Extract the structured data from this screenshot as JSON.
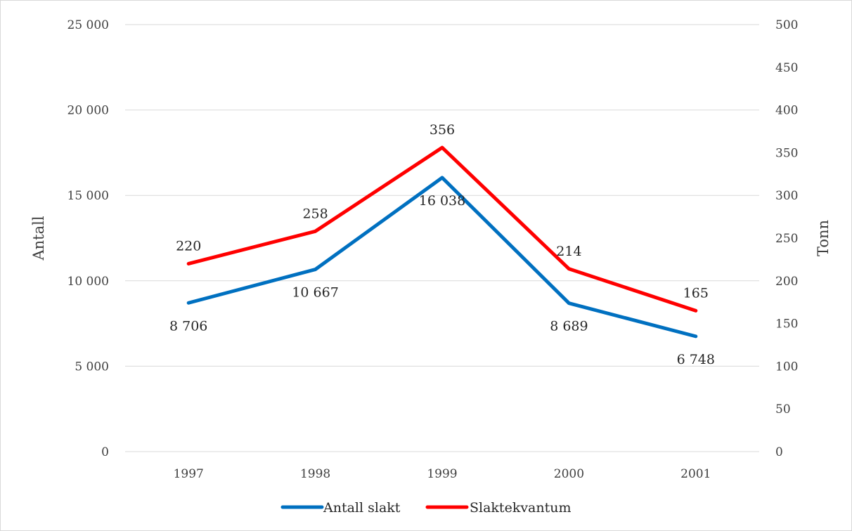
{
  "chart_data": {
    "type": "line",
    "categories": [
      "1997",
      "1998",
      "1999",
      "2000",
      "2001"
    ],
    "series": [
      {
        "name": "Antall slakt",
        "axis": "left",
        "color": "#0070c0",
        "values": [
          8706,
          10667,
          16038,
          8689,
          6748
        ],
        "labels": [
          "8 706",
          "10 667",
          "16 038",
          "8 689",
          "6 748"
        ]
      },
      {
        "name": "Slaktekvantum",
        "axis": "right",
        "color": "#ff0000",
        "values": [
          220,
          258,
          356,
          214,
          165
        ],
        "labels": [
          "220",
          "258",
          "356",
          "214",
          "165"
        ]
      }
    ],
    "y_left": {
      "label": "Antall",
      "range": [
        0,
        25000
      ],
      "ticks": [
        "0",
        "5 000",
        "10 000",
        "15 000",
        "20 000",
        "25 000"
      ]
    },
    "y_right": {
      "label": "Tonn",
      "range": [
        0,
        500
      ],
      "ticks": [
        "0",
        "50",
        "100",
        "150",
        "200",
        "250",
        "300",
        "350",
        "400",
        "450",
        "500"
      ]
    },
    "grid": true,
    "legend": "bottom"
  }
}
